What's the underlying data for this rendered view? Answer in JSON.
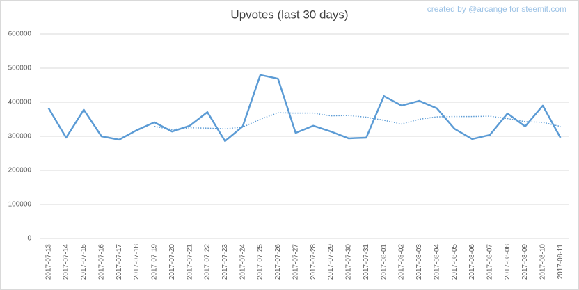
{
  "chart_data": {
    "type": "line",
    "title": "Upvotes (last 30 days)",
    "credit": "created by @arcange for steemit.com",
    "categories": [
      "2017-07-13",
      "2017-07-14",
      "2017-07-15",
      "2017-07-16",
      "2017-07-17",
      "2017-07-18",
      "2017-07-19",
      "2017-07-20",
      "2017-07-21",
      "2017-07-22",
      "2017-07-23",
      "2017-07-24",
      "2017-07-25",
      "2017-07-26",
      "2017-07-27",
      "2017-07-28",
      "2017-07-29",
      "2017-07-30",
      "2017-07-31",
      "2017-08-01",
      "2017-08-02",
      "2017-08-03",
      "2017-08-04",
      "2017-08-05",
      "2017-08-06",
      "2017-08-07",
      "2017-08-08",
      "2017-08-09",
      "2017-08-10",
      "2017-08-11"
    ],
    "series": [
      {
        "color": "#5b9bd5",
        "line_style": "solid",
        "values": [
          383000,
          296000,
          378000,
          300000,
          290000,
          318000,
          341000,
          314000,
          331000,
          371000,
          286000,
          329000,
          480000,
          469000,
          310000,
          331000,
          314000,
          294000,
          296000,
          418000,
          390000,
          404000,
          382000,
          322000,
          292000,
          304000,
          367000,
          329000,
          390000,
          296000
        ]
      },
      {
        "color": "#5b9bd5",
        "line_style": "dotted",
        "values": [
          null,
          null,
          null,
          null,
          null,
          null,
          329000,
          320000,
          325000,
          324000,
          322000,
          327000,
          350000,
          369000,
          368000,
          368000,
          360000,
          361000,
          356000,
          347000,
          336000,
          350000,
          357000,
          358000,
          358000,
          359000,
          352000,
          343000,
          341000,
          329000
        ]
      }
    ],
    "ylim": [
      0,
      600000
    ],
    "yticks": [
      0,
      100000,
      200000,
      300000,
      400000,
      500000,
      600000
    ],
    "grid": true
  }
}
